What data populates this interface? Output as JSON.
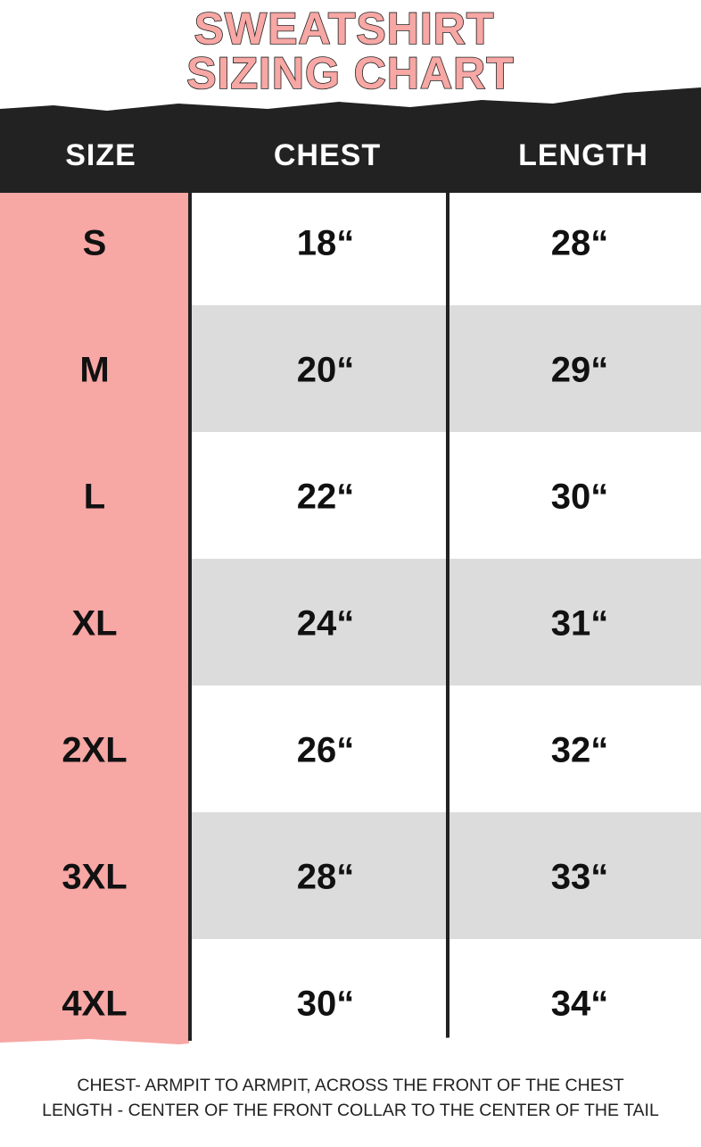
{
  "title": {
    "lines": [
      "SWEATSHIRT",
      "SIZING CHART"
    ]
  },
  "table": {
    "header": [
      "SIZE",
      "CHEST",
      "LENGTH"
    ],
    "rows": [
      [
        "S",
        "18“",
        "28“"
      ],
      [
        "M",
        "20“",
        "29“"
      ],
      [
        "L",
        "22“",
        "30“"
      ],
      [
        "XL",
        "24“",
        "31“"
      ],
      [
        "2XL",
        "26“",
        "32“"
      ],
      [
        "3XL",
        "28“",
        "33“"
      ],
      [
        "4XL",
        "30“",
        "34“"
      ]
    ]
  },
  "notes": [
    "CHEST- ARMPIT TO ARMPIT, ACROSS THE FRONT OF THE CHEST",
    "LENGTH - CENTER OF THE FRONT COLLAR TO THE CENTER OF THE TAIL"
  ]
}
